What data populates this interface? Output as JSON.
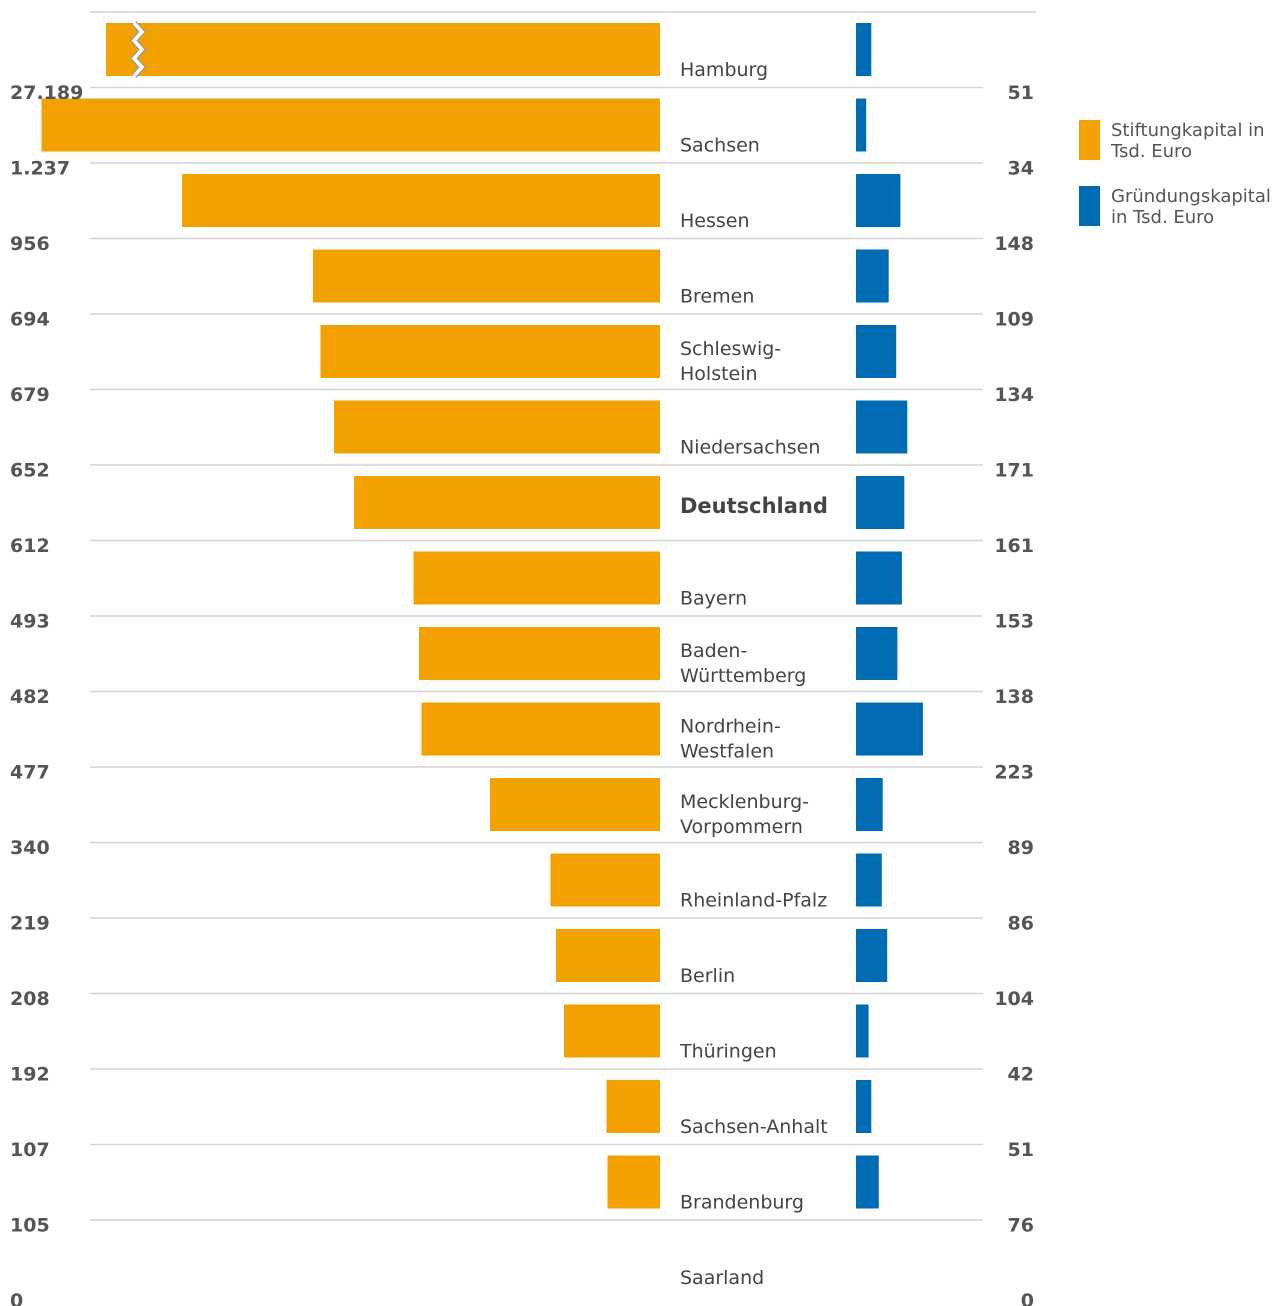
{
  "chart_data": {
    "type": "bar",
    "orientation": "horizontal",
    "layout": "back-to-back",
    "title": "",
    "categories": [
      "Hamburg",
      "Sachsen",
      "Hessen",
      "Bremen",
      "Schleswig-\nHolstein",
      "Niedersachsen",
      "Deutschland",
      "Bayern",
      "Baden-\nWürttemberg",
      "Nordrhein-\nWestfalen",
      "Mecklenburg-\nVorpommern",
      "Rheinland-Pfalz",
      "Berlin",
      "Thüringen",
      "Sachsen-Anhalt",
      "Brandenburg",
      "Saarland"
    ],
    "highlight_category": "Deutschland",
    "series": [
      {
        "name": "Stiftungkapital in Tsd. Euro",
        "color": "#f2a100",
        "side": "left",
        "values": [
          27189,
          1237,
          956,
          694,
          679,
          652,
          612,
          493,
          482,
          477,
          340,
          219,
          208,
          192,
          107,
          105,
          0
        ],
        "value_labels": [
          "27.189",
          "1.237",
          "956",
          "694",
          "679",
          "652",
          "612",
          "493",
          "482",
          "477",
          "340",
          "219",
          "208",
          "192",
          "107",
          "105",
          "0"
        ],
        "axis_break": {
          "category": "Hamburg"
        }
      },
      {
        "name": "Gründungskapital in Tsd. Euro",
        "color": "#006cb4",
        "side": "right",
        "values": [
          51,
          34,
          148,
          109,
          134,
          171,
          161,
          153,
          138,
          223,
          89,
          86,
          104,
          42,
          51,
          76,
          0
        ],
        "value_labels": [
          "51",
          "34",
          "148",
          "109",
          "134",
          "171",
          "161",
          "153",
          "138",
          "223",
          "89",
          "86",
          "104",
          "42",
          "51",
          "76",
          "0"
        ]
      }
    ],
    "legend": {
      "position": "right",
      "items": [
        {
          "label": "Stiftungkapital in\nTsd. Euro",
          "color": "#f2a100"
        },
        {
          "label": "Gründungskapital\nin Tsd. Euro",
          "color": "#006cb4"
        }
      ]
    },
    "grid": {
      "horizontal_rows": true
    }
  }
}
